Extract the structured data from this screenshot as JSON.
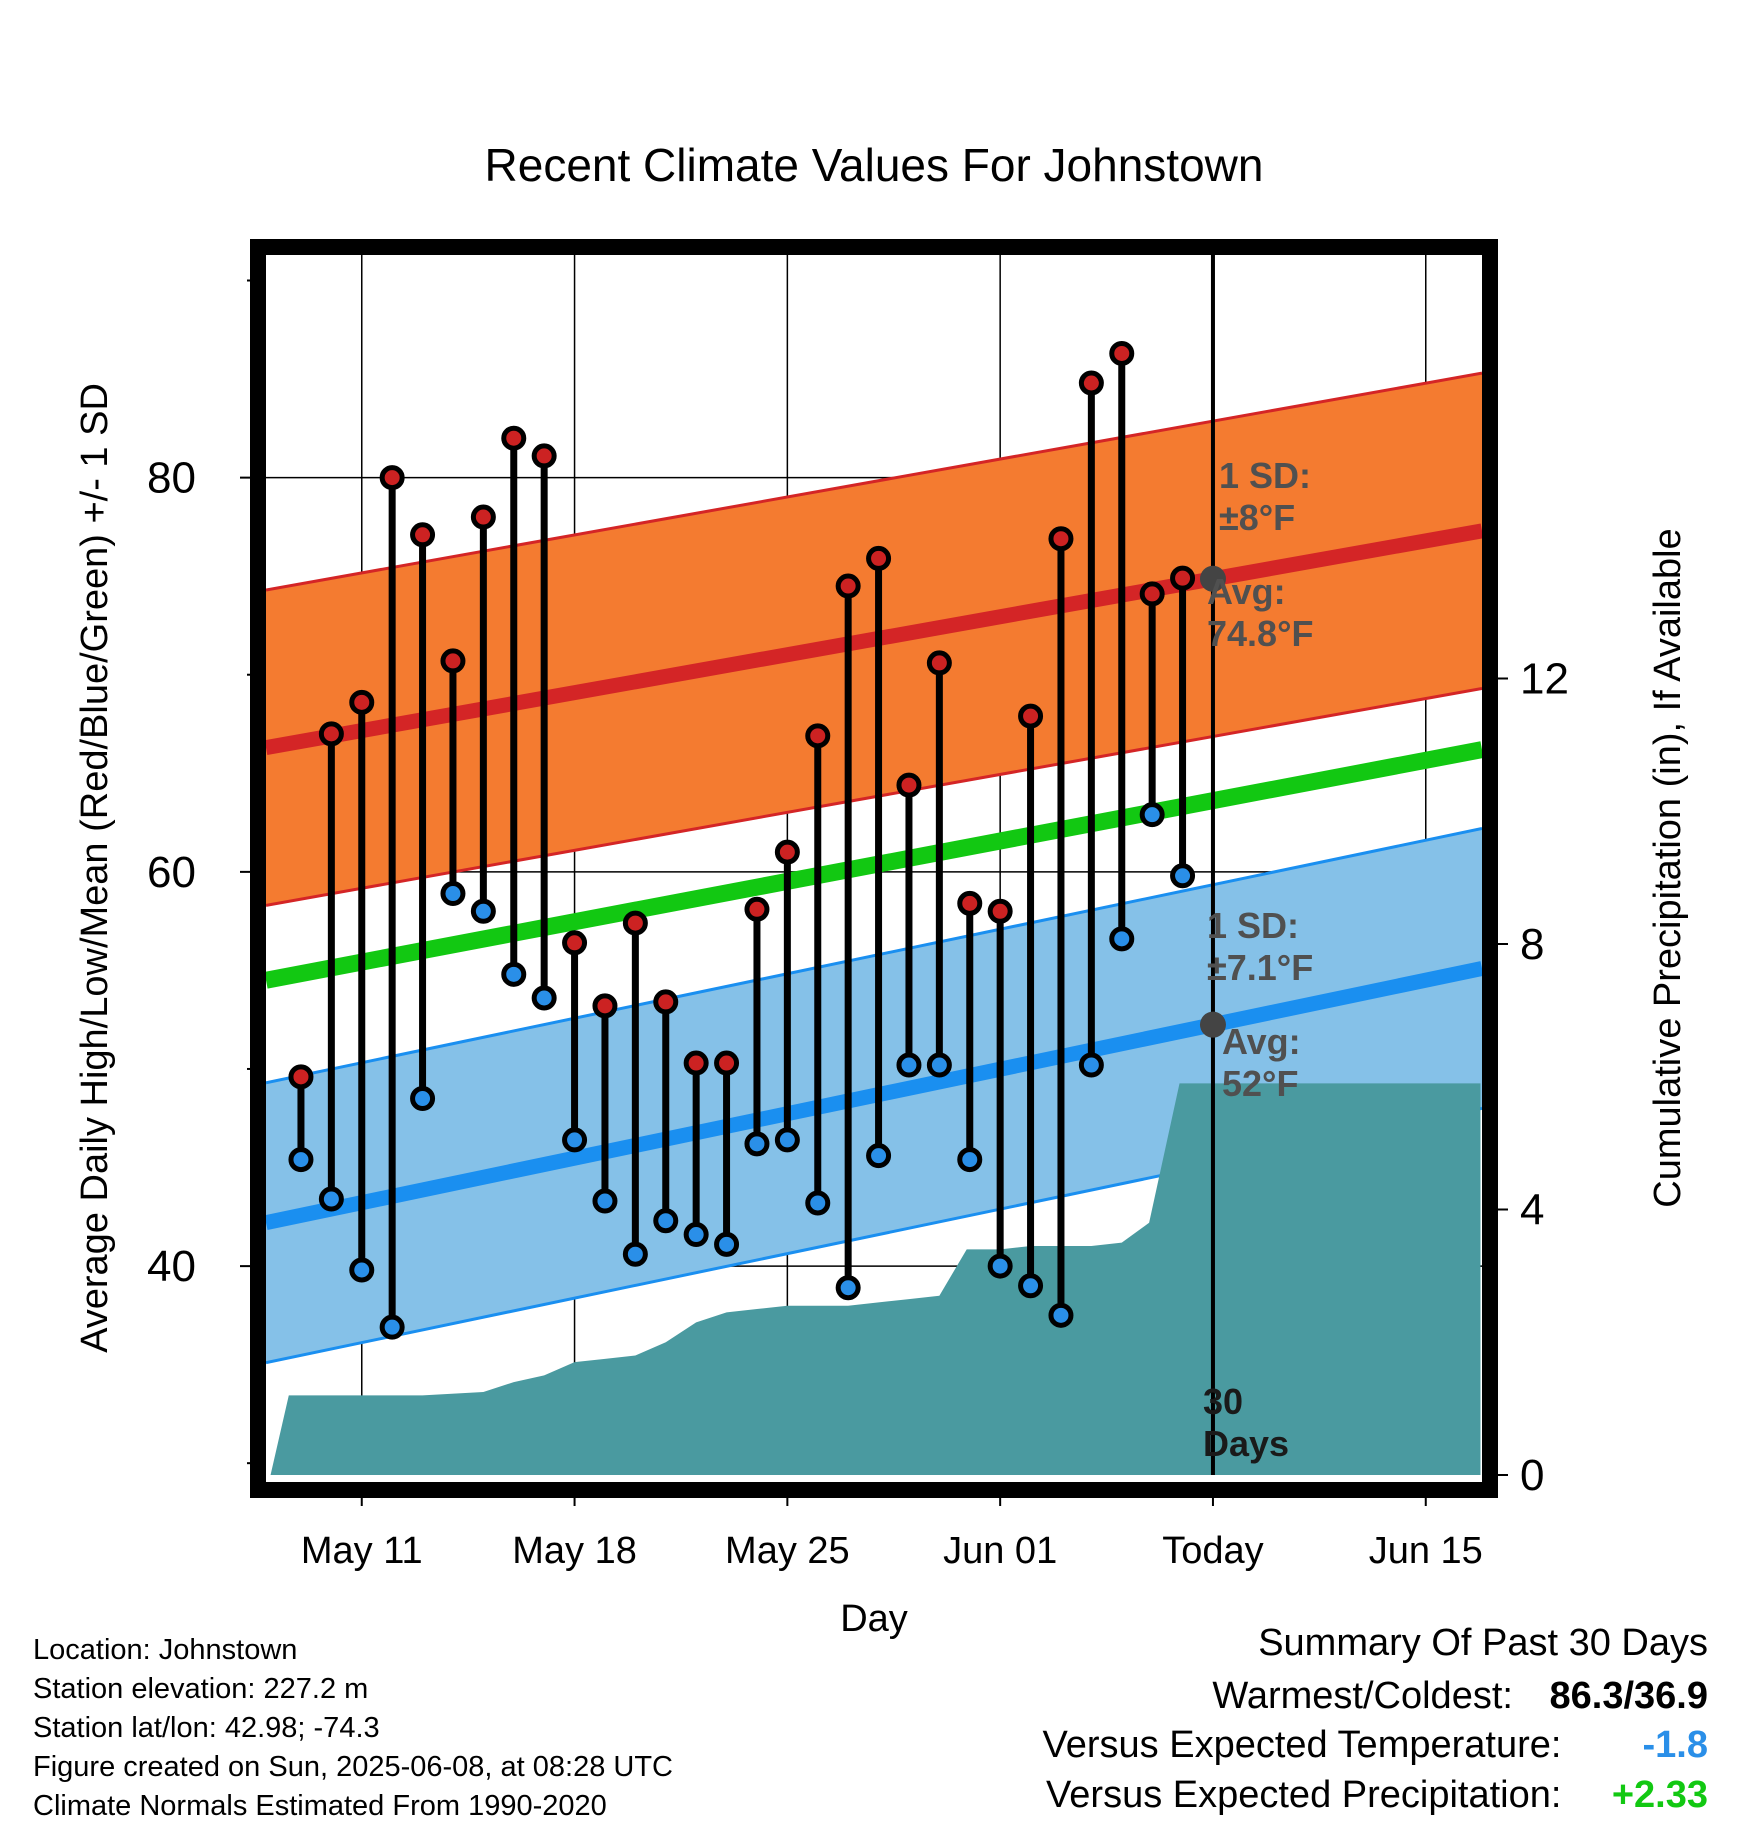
{
  "chart_data": {
    "type": "line",
    "title": "Recent Climate Values For Johnstown",
    "xlabel": "Day",
    "ylabel": "Average Daily High/Low/Mean (Red/Blue/Green) +/- 1 SD",
    "y2label": "Cumulative Precipitation (in), If Available",
    "x_ticks": [
      {
        "day": 11,
        "label": "May 11"
      },
      {
        "day": 18,
        "label": "May 18"
      },
      {
        "day": 25,
        "label": "May 25"
      },
      {
        "day": 32,
        "label": "Jun 01"
      },
      {
        "day": 39,
        "label": "Today"
      },
      {
        "day": 46,
        "label": "Jun 15"
      }
    ],
    "xlim": [
      7.85,
      47.85
    ],
    "ylim": [
      29.4,
      91.7
    ],
    "y_ticks": [
      40,
      60,
      80
    ],
    "y2lim": [
      0,
      18.5
    ],
    "y2_ticks": [
      0,
      4,
      8,
      12
    ],
    "grid": true,
    "today_day": 39,
    "days": [
      9,
      10,
      11,
      12,
      13,
      14,
      15,
      16,
      17,
      18,
      19,
      20,
      21,
      22,
      23,
      24,
      25,
      26,
      27,
      28,
      29,
      30,
      31,
      32,
      33,
      34,
      35,
      36,
      37,
      38
    ],
    "daily_high": [
      49.6,
      67.0,
      68.6,
      80.0,
      77.1,
      70.7,
      78.0,
      82.0,
      81.1,
      56.4,
      53.2,
      57.4,
      53.4,
      50.3,
      50.3,
      58.1,
      61.0,
      66.9,
      74.5,
      75.9,
      64.4,
      70.6,
      58.4,
      58.0,
      67.9,
      76.9,
      84.8,
      86.3,
      74.1,
      74.9
    ],
    "daily_low": [
      45.4,
      43.4,
      39.8,
      36.9,
      48.5,
      58.9,
      58.0,
      54.8,
      53.6,
      46.4,
      43.3,
      40.6,
      42.3,
      41.6,
      41.1,
      46.2,
      46.4,
      43.2,
      38.9,
      45.6,
      50.2,
      50.2,
      45.4,
      40.0,
      39.0,
      37.5,
      50.2,
      56.6,
      62.9,
      59.8
    ],
    "normal_high": {
      "start": 66.3,
      "end": 77.3,
      "sd": 8.0
    },
    "normal_low": {
      "start": 42.2,
      "end": 55.1,
      "sd": 7.1
    },
    "normal_mean": {
      "start": 54.5,
      "end": 66.2
    },
    "precip_cumulative": {
      "x": [
        8.0,
        8.6,
        9.5,
        11,
        13,
        15,
        16,
        17,
        18,
        19,
        20,
        21,
        22,
        23,
        24,
        25,
        26,
        27,
        28,
        29,
        30,
        30.9,
        32,
        33,
        34,
        35,
        36,
        36.9,
        37.9,
        38.8,
        39.0,
        47.8
      ],
      "y": [
        0,
        1.2,
        1.2,
        1.2,
        1.2,
        1.25,
        1.4,
        1.5,
        1.7,
        1.75,
        1.8,
        2.0,
        2.3,
        2.45,
        2.5,
        2.55,
        2.55,
        2.55,
        2.6,
        2.65,
        2.7,
        3.4,
        3.4,
        3.45,
        3.45,
        3.45,
        3.5,
        3.8,
        5.9,
        5.9,
        5.9,
        5.9
      ]
    },
    "annotations": {
      "high_sd": [
        "1 SD:",
        "±8°F"
      ],
      "high_avg": [
        "Avg:",
        "74.8°F"
      ],
      "low_sd": [
        "1 SD:",
        "±7.1°F"
      ],
      "low_avg": [
        "Avg:",
        "52°F"
      ],
      "days_label": [
        "30",
        "Days"
      ]
    },
    "colors": {
      "high_band": "#f47b30",
      "high_line": "#d42526",
      "low_band": "#85c1e8",
      "low_line": "#1a8ff0",
      "mean_line": "#12c812",
      "precip_fill": "#4a9aa0",
      "high_marker": "#cc2222",
      "low_marker": "#2a8fe8",
      "annotation_text": "#505050",
      "avg_dot": "#444444"
    }
  },
  "info": {
    "location": "Location: Johnstown",
    "elevation": "Station elevation: 227.2 m",
    "latlon": "Station lat/lon: 42.98; -74.3",
    "created": "Figure created on Sun, 2025-06-08, at 08:28 UTC",
    "normals": "Climate Normals Estimated From 1990-2020"
  },
  "summary": {
    "title": "Summary Of Past 30 Days",
    "warmest_label": "Warmest/Coldest:",
    "warmest_value": "86.3/36.9",
    "temp_label": "Versus Expected Temperature:",
    "temp_value": "-1.8",
    "temp_color": "#2a8fe8",
    "precip_label": "Versus Expected Precipitation:",
    "precip_value": "+2.33",
    "precip_color": "#12c812"
  }
}
